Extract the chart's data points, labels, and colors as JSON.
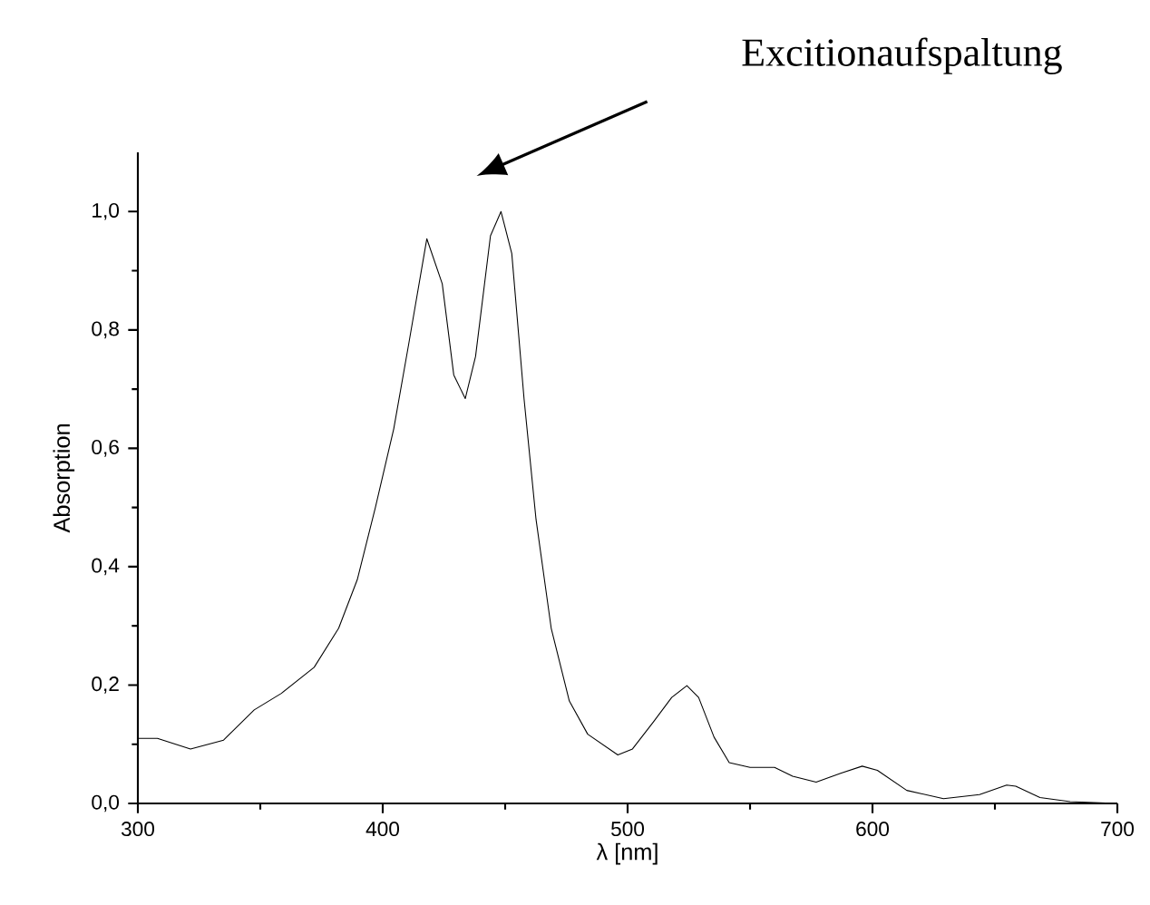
{
  "chart_data": {
    "type": "line",
    "xlabel": "λ [nm]",
    "ylabel": "Absorption",
    "color": "#000000",
    "x": [
      300,
      308,
      321.5,
      335,
      347.5,
      358.6,
      372,
      382,
      389.6,
      397,
      404.5,
      410.6,
      418,
      424.3,
      429,
      433.7,
      437.9,
      444,
      448.3,
      452.7,
      457.7,
      462.6,
      468.8,
      476.2,
      483.7,
      496,
      502,
      510.6,
      518,
      524.2,
      529,
      535.3,
      541.5,
      550,
      560,
      567.4,
      577,
      587,
      595.8,
      602,
      614,
      629,
      643.7,
      654.8,
      658.5,
      668.4,
      680.7,
      700
    ],
    "values": [
      0.11,
      0.11,
      0.092,
      0.107,
      0.158,
      0.186,
      0.23,
      0.296,
      0.378,
      0.5,
      0.633,
      0.776,
      0.954,
      0.878,
      0.724,
      0.684,
      0.755,
      0.959,
      1.0,
      0.929,
      0.684,
      0.48,
      0.296,
      0.173,
      0.117,
      0.082,
      0.092,
      0.138,
      0.179,
      0.199,
      0.179,
      0.112,
      0.069,
      0.061,
      0.061,
      0.046,
      0.036,
      0.051,
      0.063,
      0.056,
      0.022,
      0.008,
      0.015,
      0.031,
      0.029,
      0.01,
      0.003,
      0.0
    ],
    "xlim": [
      300,
      700
    ],
    "ylim": [
      0,
      1.1
    ],
    "xticks": [
      300,
      400,
      500,
      600,
      700
    ],
    "yticks": [
      {
        "value": 0,
        "label": "0,0"
      },
      {
        "value": 0.2,
        "label": "0,2"
      },
      {
        "value": 0.4,
        "label": "0,4"
      },
      {
        "value": 0.6,
        "label": "0,6"
      },
      {
        "value": 0.8,
        "label": "0,8"
      },
      {
        "value": 1.0,
        "label": "1,0"
      }
    ],
    "grid": false,
    "marker": "none",
    "line_style": "solid",
    "annotations": [
      "Excitionaufspaltung"
    ]
  }
}
